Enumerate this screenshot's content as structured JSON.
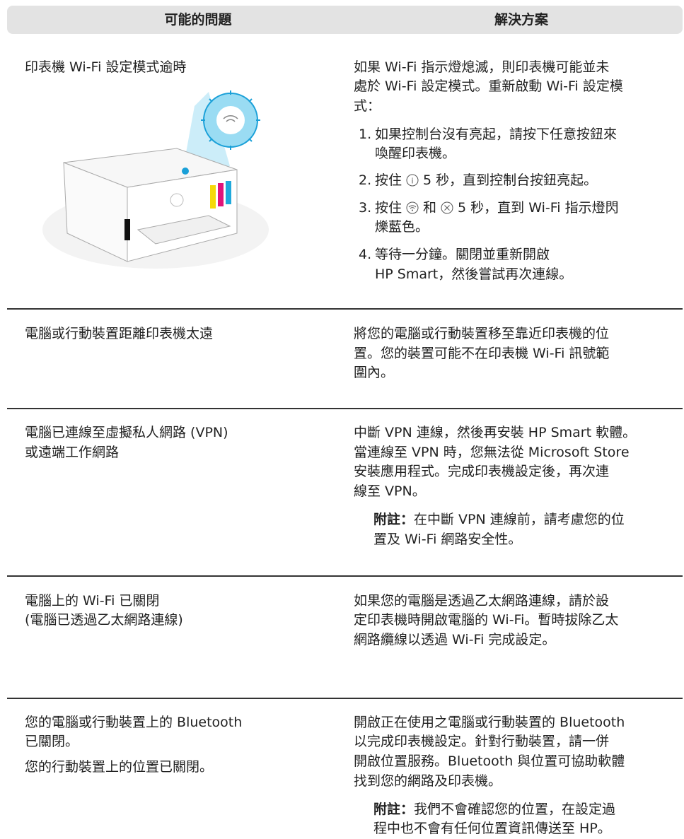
{
  "header": {
    "problem": "可能的問題",
    "solution": "解決方案"
  },
  "rows": [
    {
      "problem": [
        "印表機 Wi-Fi 設定模式逾時"
      ],
      "solution": [
        "如果 Wi-Fi 指示燈熄滅，則印表機可能並未",
        "處於 Wi-Fi 設定模式。重新啟動 Wi-Fi 設定模",
        "式："
      ],
      "steps": [
        {
          "num": "1.",
          "lines": [
            "如果控制台沒有亮起，請按下任意按鈕來",
            "喚醒印表機。"
          ]
        },
        {
          "num": "2.",
          "parts": [
            "按住",
            "5 秒，直到控制台按鈕亮起。"
          ]
        },
        {
          "num": "3.",
          "parts": [
            "按住",
            "和",
            "5 秒，直到 Wi-Fi 指示燈閃"
          ],
          "lines": [
            "爍藍色。"
          ]
        },
        {
          "num": "4.",
          "lines": [
            "等待一分鐘。關閉並重新開啟",
            "HP Smart，然後嘗試再次連線。"
          ]
        }
      ]
    },
    {
      "problem": [
        "電腦或行動裝置距離印表機太遠"
      ],
      "solution": [
        "將您的電腦或行動裝置移至靠近印表機的位",
        "置。您的裝置可能不在印表機 Wi-Fi 訊號範",
        "圍內。"
      ]
    },
    {
      "problem": [
        "電腦已連線至虛擬私人網路 (VPN)",
        "或遠端工作網路"
      ],
      "solution": [
        "中斷 VPN 連線，然後再安裝 HP Smart 軟體。",
        "當連線至 VPN 時，您無法從 Microsoft Store",
        "安裝應用程式。完成印表機設定後，再次連",
        "線至 VPN。"
      ],
      "note": {
        "label": "附註：",
        "lines": [
          "在中斷 VPN 連線前，請考慮您的位",
          "置及 Wi-Fi 網路安全性。"
        ]
      }
    },
    {
      "problem": [
        "電腦上的 Wi-Fi 已關閉",
        "(電腦已透過乙太網路連線)"
      ],
      "solution": [
        "如果您的電腦是透過乙太網路連線，請於設",
        "定印表機時開啟電腦的 Wi-Fi。暫時拔除乙太",
        "網路纜線以透過 Wi-Fi 完成設定。"
      ]
    },
    {
      "problem": [
        "您的電腦或行動裝置上的 Bluetooth",
        "已關閉。",
        "您的行動裝置上的位置已關閉。"
      ],
      "solution": [
        "開啟正在使用之電腦或行動裝置的 Bluetooth",
        "以完成印表機設定。針對行動裝置，請一併",
        "開啟位置服務。Bluetooth 與位置可協助軟體",
        "找到您的網路及印表機。"
      ],
      "note": {
        "label": "附註：",
        "lines": [
          "我們不會確認您的位置，在設定過",
          "程中也不會有任何位置資訊傳送至 HP。"
        ]
      }
    }
  ]
}
